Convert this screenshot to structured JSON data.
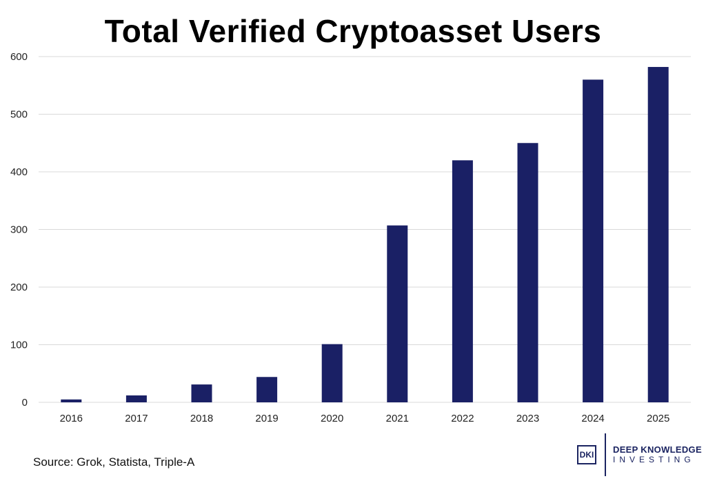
{
  "chart_data": {
    "type": "bar",
    "title": "Total Verified Cryptoasset Users",
    "categories": [
      "2016",
      "2017",
      "2018",
      "2019",
      "2020",
      "2021",
      "2022",
      "2023",
      "2024",
      "2025"
    ],
    "values": [
      5,
      12,
      31,
      44,
      101,
      307,
      420,
      450,
      560,
      582
    ],
    "ylim": [
      0,
      600
    ],
    "yticks": [
      0,
      100,
      200,
      300,
      400,
      500,
      600
    ],
    "xlabel": "",
    "ylabel": "",
    "grid": true,
    "bar_color": "#1a2065"
  },
  "source": "Source: Grok, Statista, Triple-A",
  "logo": {
    "mark": "DKI",
    "line1": "DEEP KNOWLEDGE",
    "line2": "INVESTING"
  }
}
